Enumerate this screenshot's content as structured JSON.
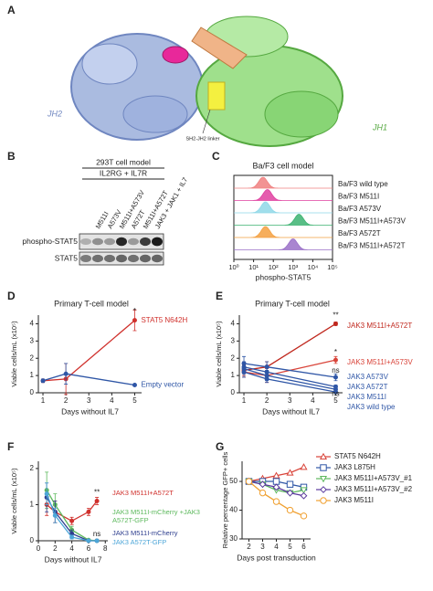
{
  "chart_data": [
    {
      "type": "structure",
      "panel": "A",
      "labels": [
        "JH2",
        "JH1",
        "SH2-JH2 linker"
      ]
    },
    {
      "type": "blot",
      "panel": "B",
      "header": [
        "293T cell model",
        "IL2RG + IL7R"
      ],
      "lanes": [
        null,
        "M511I",
        "A573V",
        "M511I+A573V",
        "A572T",
        "M511I+A572T",
        "JAK3 + JAK1 + IL7"
      ],
      "rows": [
        "phospho-STAT5",
        "STAT5"
      ]
    },
    {
      "type": "density",
      "panel": "C",
      "title": "Ba/F3 cell model",
      "xlabel": "phospho-STAT5",
      "log_x": true,
      "xlim": [
        1,
        100000
      ],
      "xticks": [
        {
          "value": 1,
          "label": "10⁰"
        },
        {
          "value": 10,
          "label": "10¹"
        },
        {
          "value": 100,
          "label": "10²"
        },
        {
          "value": 1000,
          "label": "10³"
        },
        {
          "value": 10000,
          "label": "10⁴"
        },
        {
          "value": 100000,
          "label": "10⁵"
        }
      ],
      "series": [
        {
          "name": "Ba/F3 wild type",
          "color": "#f08080",
          "peak": 30
        },
        {
          "name": "Ba/F3 M511I",
          "color": "#e040a0",
          "peak": 50
        },
        {
          "name": "Ba/F3 A573V",
          "color": "#8fd8e8",
          "peak": 40
        },
        {
          "name": "Ba/F3 M511I+A573V",
          "color": "#3cb371",
          "peak": 2000
        },
        {
          "name": "Ba/F3 A572T",
          "color": "#f4a040",
          "peak": 40
        },
        {
          "name": "Ba/F3 M511I+A572T",
          "color": "#9a70c8",
          "peak": 1000
        }
      ]
    },
    {
      "type": "line",
      "panel": "D",
      "title": "Primary T-cell model",
      "xlabel": "Days without IL7",
      "ylabel": "Viable cells/mL (x10⁵)",
      "x": [
        1,
        2,
        5
      ],
      "xlim": [
        0.8,
        5.3
      ],
      "xticks": [
        1,
        2,
        3,
        4,
        5
      ],
      "ylim": [
        0,
        4.5
      ],
      "yticks": [
        0,
        1,
        2,
        3,
        4
      ],
      "series": [
        {
          "name": "STAT5 N642H",
          "color": "#d0312d",
          "values": [
            0.7,
            0.8,
            4.2
          ],
          "errors": [
            0.1,
            0.9,
            0.6
          ]
        },
        {
          "name": "Empty vector",
          "color": "#2f56a6",
          "values": [
            0.7,
            1.1,
            0.45
          ],
          "errors": [
            0.1,
            0.6,
            0.05
          ]
        }
      ],
      "annotations": [
        "*"
      ]
    },
    {
      "type": "line",
      "panel": "E",
      "title": "Primary T-cell model",
      "xlabel": "Days without IL7",
      "ylabel": "Viable cells/mL (x10⁵)",
      "x": [
        1,
        2,
        5
      ],
      "xlim": [
        0.8,
        5.3
      ],
      "xticks": [
        1,
        2,
        3,
        4,
        5
      ],
      "ylim": [
        0,
        4.5
      ],
      "yticks": [
        0,
        1,
        2,
        3,
        4
      ],
      "series": [
        {
          "name": "JAK3 M511I+A572T",
          "color": "#c0281e",
          "values": [
            1.3,
            1.5,
            4.0
          ],
          "errors": [
            0.3,
            0.3,
            0.1
          ]
        },
        {
          "name": "JAK3 M511I+A573V",
          "color": "#d9443a",
          "values": [
            1.2,
            1.0,
            1.9
          ],
          "errors": [
            0.3,
            0.4,
            0.2
          ]
        },
        {
          "name": "JAK3 A573V",
          "color": "#2f56a6",
          "values": [
            1.7,
            1.5,
            0.9
          ],
          "errors": [
            0.4,
            0.3,
            0.2
          ]
        },
        {
          "name": "JAK3 A572T",
          "color": "#2f56a6",
          "values": [
            1.5,
            1.2,
            0.35
          ],
          "errors": [
            0.3,
            0.3,
            0.1
          ]
        },
        {
          "name": "JAK3 M511I",
          "color": "#2f56a6",
          "values": [
            1.4,
            1.0,
            0.2
          ],
          "errors": [
            0.3,
            0.3,
            0.05
          ]
        },
        {
          "name": "JAK3 wild type",
          "color": "#2f56a6",
          "values": [
            1.2,
            0.8,
            0.05
          ],
          "errors": [
            0.3,
            0.2,
            0.03
          ]
        }
      ],
      "annotations": [
        "**",
        "*",
        "ns",
        "ns"
      ]
    },
    {
      "type": "line",
      "panel": "F",
      "xlabel": "Days without IL7",
      "ylabel": "Viable cells/mL (x10⁵)",
      "x": [
        1,
        2,
        4,
        6,
        7
      ],
      "xlim": [
        0,
        8.3
      ],
      "xticks": [
        0,
        2,
        4,
        6,
        8
      ],
      "ylim": [
        0,
        2.2
      ],
      "yticks": [
        0,
        1,
        2
      ],
      "series": [
        {
          "name": "JAK3 M511I+A572T",
          "color": "#d0312d",
          "values": [
            1.0,
            0.8,
            0.55,
            0.8,
            1.1
          ],
          "errors": [
            0.3,
            0.3,
            0.1,
            0.1,
            0.1
          ]
        },
        {
          "name": "JAK3 M511I-mCherry +JAK3 A572T-GFP",
          "color": "#5cb85c",
          "values": [
            1.4,
            1.0,
            0.3,
            0.02,
            0.0
          ],
          "errors": [
            0.5,
            0.3,
            0.1,
            0.02,
            0.02
          ]
        },
        {
          "name": "JAK3 M511I-mCherry",
          "color": "#2d3e8e",
          "values": [
            1.2,
            0.8,
            0.2,
            0.0,
            0.0
          ],
          "errors": [
            0.4,
            0.3,
            0.1,
            0.02,
            0.02
          ]
        },
        {
          "name": "JAK3 A572T-GFP",
          "color": "#4da6d8",
          "values": [
            1.3,
            0.7,
            0.1,
            0.0,
            0.0
          ],
          "errors": [
            0.3,
            0.2,
            0.05,
            0.02,
            0.02
          ]
        }
      ],
      "annotations": [
        "**",
        "ns"
      ]
    },
    {
      "type": "line",
      "panel": "G",
      "xlabel": "Days post transduction",
      "ylabel": "Relative percentage GFP+ cells",
      "legend": "right",
      "x": [
        2,
        3,
        4,
        5,
        6
      ],
      "xlim": [
        1.5,
        6.5
      ],
      "xticks": [
        2,
        3,
        4,
        5,
        6
      ],
      "ylim": [
        30,
        57
      ],
      "yticks": [
        30,
        40,
        50
      ],
      "series": [
        {
          "name": "STAT5 N642H",
          "color": "#d9443a",
          "marker": "triangle",
          "values": [
            50,
            51,
            52,
            53,
            55
          ]
        },
        {
          "name": "JAK3 L875H",
          "color": "#2f56a6",
          "marker": "square",
          "values": [
            50,
            50,
            50,
            49,
            48
          ]
        },
        {
          "name": "JAK3 M511I+A573V_#1",
          "color": "#5cb85c",
          "marker": "triangle-down",
          "values": [
            50,
            49,
            47,
            46,
            47
          ]
        },
        {
          "name": "JAK3 M511I+A573V_#2",
          "color": "#5b3a9e",
          "marker": "diamond",
          "values": [
            50,
            49,
            48,
            46,
            45
          ]
        },
        {
          "name": "JAK3 M511I",
          "color": "#f0a030",
          "marker": "circle",
          "values": [
            50,
            46,
            43,
            40,
            38
          ]
        }
      ]
    }
  ]
}
